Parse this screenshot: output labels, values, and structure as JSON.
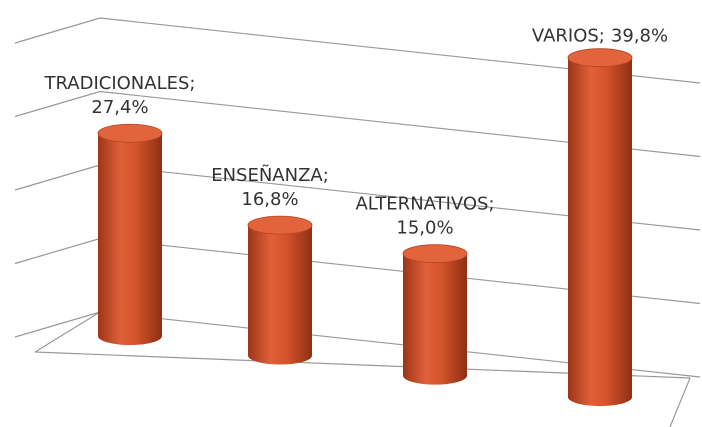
{
  "chart_data": {
    "type": "bar3d",
    "categories": [
      "TRADICIONALES;",
      "ENSEÑANZA;",
      "ALTERNATIVOS;",
      "VARIOS;"
    ],
    "values": [
      27.4,
      16.8,
      15.0,
      39.8
    ],
    "value_labels": [
      "27,4%",
      "16,8%",
      "15,0%",
      "39,8%"
    ],
    "color": "#d4532a",
    "ylim": [
      0,
      40
    ],
    "yticks": [
      0,
      10,
      20,
      30,
      40
    ],
    "grid": true
  }
}
